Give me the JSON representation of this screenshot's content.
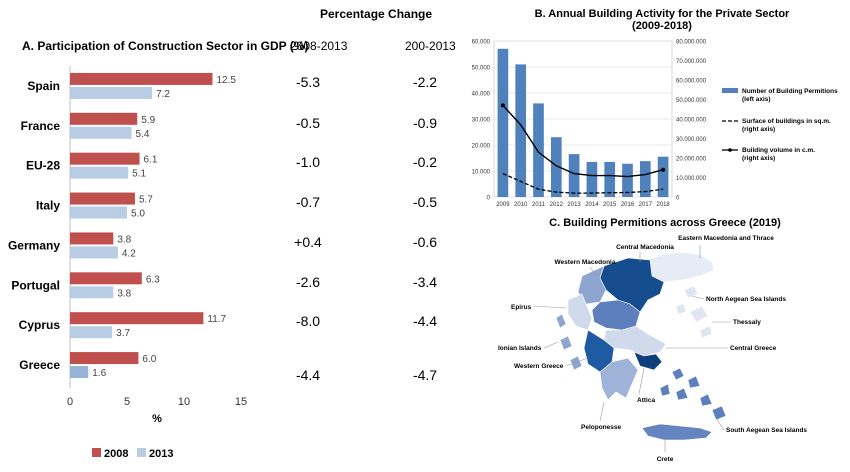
{
  "panel_a": {
    "chart_data": {
      "type": "bar",
      "title": "A. Participation of Construction Sector in GDP (%)",
      "categories": [
        "Spain",
        "France",
        "EU-28",
        "Italy",
        "Germany",
        "Portugal",
        "Cyprus",
        "Greece"
      ],
      "series": [
        {
          "name": "2008",
          "values": [
            12.5,
            5.9,
            6.1,
            5.7,
            3.8,
            6.3,
            11.7,
            6.0
          ],
          "labels": [
            "12.5",
            "5.9",
            "6.1",
            "5.7",
            "3.8",
            "6.3",
            "11.7",
            "6.0"
          ]
        },
        {
          "name": "2013",
          "values": [
            7.2,
            5.4,
            5.1,
            5.0,
            4.2,
            3.8,
            3.7,
            1.6
          ],
          "labels": [
            "7.2",
            "5.4",
            "5.1",
            "5.0",
            "4.2",
            "3.8",
            "3.7",
            "1.6"
          ]
        }
      ],
      "xlabel": "%",
      "xlim": [
        0,
        15
      ],
      "xticks": [
        "0",
        "5",
        "10",
        "15"
      ],
      "orientation": "horizontal",
      "legend": "bottom"
    },
    "colors": {
      "2008": "#c0504d",
      "2013": "#b8cce4",
      "greece_2013": "#95b3d7"
    }
  },
  "pct_change": {
    "title": "Percentage Change",
    "col1_header": "2008-2013",
    "col2_header": "200-2013",
    "col1": [
      "-5.3",
      "-0.5",
      "-1.0",
      "-0.7",
      "+0.4",
      "-2.6",
      "-8.0",
      "-4.4"
    ],
    "col2": [
      "-2.2",
      "-0.9",
      "-0.2",
      "-0.5",
      "-0.6",
      "-3.4",
      "-4.4",
      "-4.7"
    ]
  },
  "panel_b": {
    "chart_data": {
      "type": "bar",
      "title": "B. Annual Building Activity for the Private Sector",
      "subtitle": "(2009-2018)",
      "categories": [
        "2009",
        "2010",
        "2011",
        "2012",
        "2013",
        "2014",
        "2015",
        "2016",
        "2017",
        "2018"
      ],
      "series": [
        {
          "name": "Number of Building Permitions",
          "name_line2": "(left axis)",
          "type": "bar",
          "axis": "left",
          "values": [
            57000,
            51000,
            36000,
            23000,
            16500,
            13500,
            13500,
            12800,
            13800,
            15500
          ]
        },
        {
          "name": "Surface of buildings in sq.m.",
          "name_line2": "(right axis)",
          "type": "line-dashed",
          "axis": "right",
          "values": [
            12000000,
            8000000,
            4000000,
            2500000,
            2000000,
            2000000,
            2200000,
            2300000,
            2800000,
            4000000
          ]
        },
        {
          "name": "Building volume in c.m.",
          "name_line2": "(right axis)",
          "type": "line",
          "axis": "right",
          "values": [
            47000000,
            37000000,
            23000000,
            16000000,
            12000000,
            11000000,
            11000000,
            10500000,
            11500000,
            14000000
          ]
        }
      ],
      "ylim_left": [
        0,
        60000
      ],
      "yticks_left": [
        "0",
        "10.000",
        "20.000",
        "30.000",
        "40.000",
        "50.000",
        "60.000"
      ],
      "ylim_right": [
        0,
        80000000
      ],
      "yticks_right": [
        "0",
        "10.000.000",
        "20.000.000",
        "30.000.000",
        "40.000.000",
        "50.000.000",
        "60.000.000",
        "70.000.000",
        "80.000.000"
      ],
      "legend": "right"
    },
    "colors": {
      "bar": "#4f81bd",
      "bar_highlight": "#2e6db4",
      "line": "#000000"
    }
  },
  "panel_c": {
    "title": "C.  Building Permitions across Greece (2019)",
    "regions": [
      {
        "label": "Eastern Macedonia and Thrace",
        "fill": "#e6ecf6"
      },
      {
        "label": "Central Macedonia",
        "fill": "#164d8f"
      },
      {
        "label": "Western Macedonia",
        "fill": "#8ea6cf"
      },
      {
        "label": "North Aegean Sea Islands",
        "fill": "#dfe6f2"
      },
      {
        "label": "Epirus",
        "fill": "#cfdaed"
      },
      {
        "label": "Thessaly",
        "fill": "#5d7fbd"
      },
      {
        "label": "Ionian Islands",
        "fill": "#8ea6cf"
      },
      {
        "label": "Central Greece",
        "fill": "#cfdaed"
      },
      {
        "label": "Western Greece",
        "fill": "#1e5ba3"
      },
      {
        "label": "Attica",
        "fill": "#0f3f7a"
      },
      {
        "label": "Peloponesse",
        "fill": "#9fb3d8"
      },
      {
        "label": "South Aegean Sea Islands",
        "fill": "#5d7fbd"
      },
      {
        "label": "Crete",
        "fill": "#6585c0"
      }
    ]
  }
}
